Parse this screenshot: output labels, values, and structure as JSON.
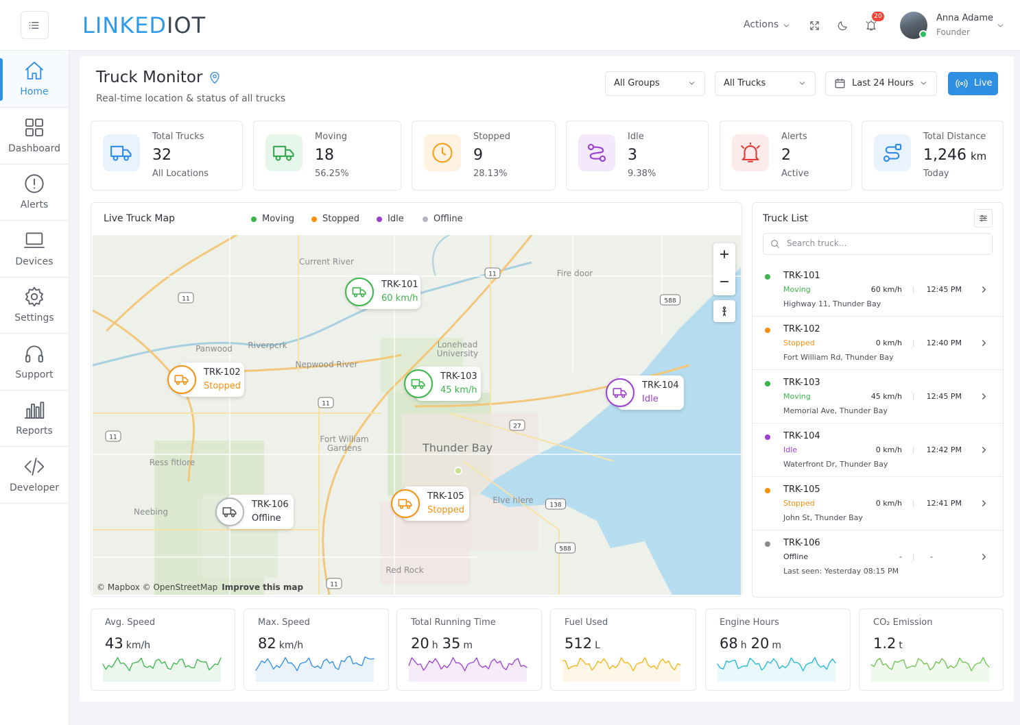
{
  "header": {
    "logo_primary": "LINKED",
    "logo_secondary": "IOT",
    "actions": "Actions",
    "notification_count": "20",
    "user_name": "Anna Adame",
    "user_role": "Founder"
  },
  "sidebar": {
    "items": [
      "Home",
      "Dashboard",
      "Alerts",
      "Devices",
      "Settings",
      "Support",
      "Reports",
      "Developer"
    ]
  },
  "page": {
    "title": "Truck Monitor",
    "subtitle": "Real-time location & status of all trucks",
    "filters": [
      "All Groups",
      "All Trucks",
      "Last 24 Hours"
    ],
    "live": "Live"
  },
  "stats": [
    {
      "label": "Total Trucks",
      "value": "32",
      "sub": "All Locations"
    },
    {
      "label": "Moving",
      "value": "18",
      "sub": "56.25%"
    },
    {
      "label": "Stopped",
      "value": "9",
      "sub": "28.13%"
    },
    {
      "label": "Idle",
      "value": "3",
      "sub": "9.38%"
    },
    {
      "label": "Alerts",
      "value": "2",
      "sub": "Active"
    },
    {
      "label": "Total Distance",
      "value": "1,246",
      "unit": "km",
      "sub": "Today"
    }
  ],
  "map": {
    "title": "Live Truck Map",
    "legend": [
      {
        "name": "Moving",
        "color": "#3bb54a"
      },
      {
        "name": "Stopped",
        "color": "#f5920f"
      },
      {
        "name": "Idle",
        "color": "#9b3fd1"
      },
      {
        "name": "Offline",
        "color": "#b5b8bd"
      }
    ],
    "markers": [
      {
        "id": "TRK-101",
        "detail": "60 km/h"
      },
      {
        "id": "TRK-102",
        "detail": "Stopped"
      },
      {
        "id": "TRK-103",
        "detail": "45 km/h"
      },
      {
        "id": "TRK-104",
        "detail": "Idle"
      },
      {
        "id": "TRK-105",
        "detail": "Stopped"
      },
      {
        "id": "TRK-106",
        "detail": "Offline"
      }
    ],
    "places": [
      "Current River",
      "Fire door",
      "Lonehead",
      "University",
      "Thunder Bay",
      "Fort William",
      "Gardens",
      "Ress fitlore",
      "Neebing",
      "Red Rock",
      "Elve hlere",
      "Nepwood River",
      "Riverpcrk",
      "Panwood"
    ],
    "shields": [
      "11",
      "11",
      "11",
      "11",
      "11",
      "588",
      "588",
      "27",
      "138"
    ],
    "attribution": "© Mapbox © OpenStreetMap",
    "improve": "Improve this map"
  },
  "truck_list": {
    "title": "Truck List",
    "search_placeholder": "Search truck...",
    "rows": [
      {
        "id": "TRK-101",
        "status": "Moving",
        "speed": "60 km/h",
        "time": "12:45 PM",
        "location": "Highway 11, Thunder Bay"
      },
      {
        "id": "TRK-102",
        "status": "Stopped",
        "speed": "0 km/h",
        "time": "12:40 PM",
        "location": "Fort William Rd, Thunder Bay"
      },
      {
        "id": "TRK-103",
        "status": "Moving",
        "speed": "45 km/h",
        "time": "12:45 PM",
        "location": "Memorial Ave, Thunder Bay"
      },
      {
        "id": "TRK-104",
        "status": "Idle",
        "speed": "0 km/h",
        "time": "12:42 PM",
        "location": "Waterfront Dr, Thunder Bay"
      },
      {
        "id": "TRK-105",
        "status": "Stopped",
        "speed": "0 km/h",
        "time": "12:41 PM",
        "location": "John St, Thunder Bay"
      },
      {
        "id": "TRK-106",
        "status": "Offline",
        "speed": "-",
        "time": "-",
        "location": "Last seen: Yesterday 08:15 PM"
      }
    ]
  },
  "metrics": [
    {
      "label": "Avg. Speed",
      "parts": [
        {
          "num": "43",
          "unit": "km/h"
        }
      ],
      "color": "#3bb54a"
    },
    {
      "label": "Max. Speed",
      "parts": [
        {
          "num": "82",
          "unit": "km/h"
        }
      ],
      "color": "#2e8ce6"
    },
    {
      "label": "Total Running Time",
      "parts": [
        {
          "num": "20",
          "unit": "h"
        },
        {
          "num": "35",
          "unit": "m"
        }
      ],
      "color": "#9b3fd1"
    },
    {
      "label": "Fuel Used",
      "parts": [
        {
          "num": "512",
          "unit": "L"
        }
      ],
      "color": "#f5b20f"
    },
    {
      "label": "Engine Hours",
      "parts": [
        {
          "num": "68",
          "unit": "h"
        },
        {
          "num": "20",
          "unit": "m"
        }
      ],
      "color": "#1fb6d6"
    },
    {
      "label": "CO₂ Emission",
      "parts": [
        {
          "num": "1.2",
          "unit": "t"
        }
      ],
      "color": "#6cc24a"
    }
  ]
}
